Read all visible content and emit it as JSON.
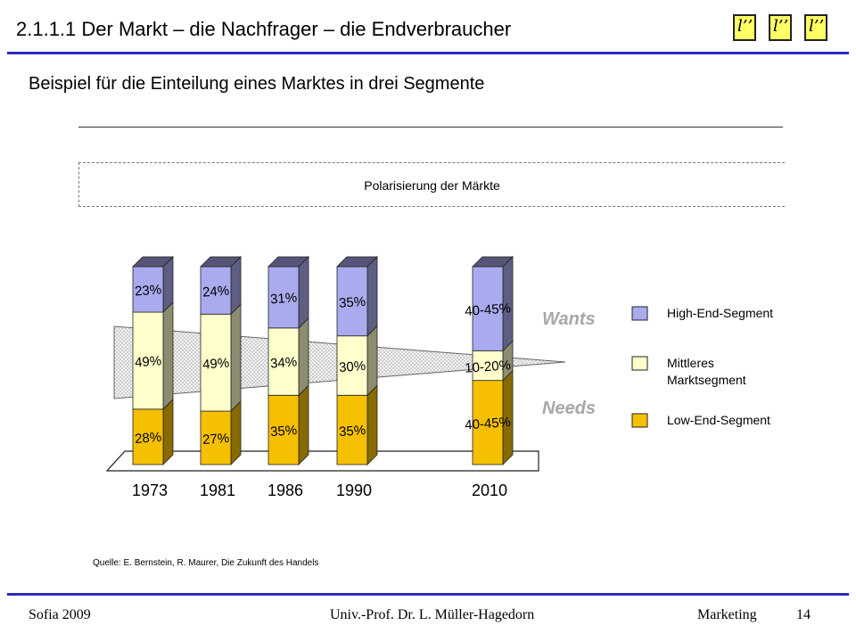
{
  "header": {
    "title": "2.1.1.1 Der Markt – die Nachfrager – die Endverbraucher",
    "logo_glyph": "l’’",
    "accent_color": "#2b2bbf"
  },
  "subtitle": "Beispiel für die Einteilung eines Marktes in drei Segmente",
  "chart_data": {
    "type": "bar",
    "title": "Polarisierung der Märkte",
    "categories": [
      "1973",
      "1981",
      "1986",
      "1990",
      "2010"
    ],
    "stacked": true,
    "series": [
      {
        "name": "Low-End-Segment",
        "color": "#f5c000",
        "values": [
          28,
          27,
          35,
          35,
          42.5
        ],
        "labels": [
          "28%",
          "27%",
          "35%",
          "35%",
          "40-45%"
        ]
      },
      {
        "name": "Mittleres Marktsegment",
        "color": "#ffffcc",
        "values": [
          49,
          49,
          34,
          30,
          15
        ],
        "labels": [
          "49%",
          "49%",
          "34%",
          "30%",
          "10-20%"
        ]
      },
      {
        "name": "High-End-Segment",
        "color": "#aaaaee",
        "values": [
          23,
          24,
          31,
          35,
          42.5
        ],
        "labels": [
          "23%",
          "24%",
          "31%",
          "35%",
          "40-45%"
        ]
      }
    ],
    "annotations": [
      "Wants",
      "Needs"
    ],
    "legend_position": "right"
  },
  "legend": {
    "high": "High-End-Segment",
    "mid_line1": "Mittleres",
    "mid_line2": "Marktsegment",
    "low": "Low-End-Segment"
  },
  "annotations": {
    "wants": "Wants",
    "needs": "Needs"
  },
  "source": "Quelle: E. Bernstein, R. Maurer, Die Zukunft des Handels",
  "footer": {
    "left": "Sofia 2009",
    "center": "Univ.-Prof. Dr. L. Müller-Hagedorn",
    "right": "Marketing",
    "page": "14"
  }
}
